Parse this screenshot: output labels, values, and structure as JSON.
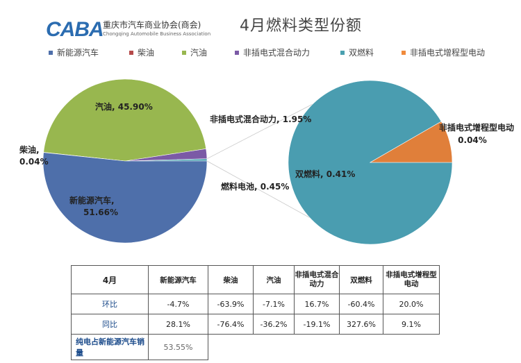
{
  "header": {
    "logo_mark": "CABA",
    "logo_cn": "重庆市汽车商业协会(商会)",
    "logo_en": "Chongqing Automobile Business Association",
    "title": "4月燃料类型份额"
  },
  "chart_data": {
    "type": "pie",
    "title": "4月燃料类型份额",
    "legend_position": "top",
    "series": [
      {
        "name": "新能源汽车",
        "color": "#4e6faa"
      },
      {
        "name": "柴油",
        "color": "#b54a4a"
      },
      {
        "name": "汽油",
        "color": "#98b74f"
      },
      {
        "name": "非插电式混合动力",
        "color": "#7b5aa6"
      },
      {
        "name": "双燃料",
        "color": "#4aa0b0"
      },
      {
        "name": "非插电式增程型电动",
        "color": "#f08a3c"
      }
    ],
    "main_pie": {
      "slices": [
        {
          "label": "新能源汽车",
          "value": 51.66,
          "display": "51.66%",
          "color": "#4e6faa"
        },
        {
          "label": "柴油",
          "value": 0.04,
          "display": "0.04%",
          "color": "#b54a4a"
        },
        {
          "label": "汽油",
          "value": 45.9,
          "display": "45.90%",
          "color": "#98b74f"
        },
        {
          "label": "非插电式混合动力",
          "value": 1.95,
          "display": "1.95%",
          "color": "#7b5aa6"
        },
        {
          "label": "燃料电池",
          "value": 0.45,
          "display": "0.45%",
          "color": "#4aa0b0"
        }
      ]
    },
    "sub_pie": {
      "slices": [
        {
          "label": "双燃料",
          "value": 0.41,
          "display": "0.41%",
          "color": "#4a9db0"
        },
        {
          "label": "非插电式增程型电动",
          "value": 0.04,
          "display": "0.04%",
          "color": "#e07f3a"
        }
      ]
    }
  },
  "labels": {
    "nev": [
      "新能源汽车,",
      "51.66%"
    ],
    "diesel": [
      "柴油,",
      "0.04%"
    ],
    "gasoline": "汽油, 45.90%",
    "hybrid": "非插电式混合动力, 1.95%",
    "fuelcell": "燃料电池, 0.45%",
    "dualfuel": "双燃料, 0.41%",
    "erev": [
      "非插电式增程型电动",
      "0.04%"
    ]
  },
  "table": {
    "headers": [
      "4月",
      "新能源汽车",
      "柴油",
      "汽油",
      "非插电式混合动力",
      "双燃料",
      "非插电式增程型电动"
    ],
    "rows": [
      {
        "label": "环比",
        "values": [
          "-4.7%",
          "-63.9%",
          "-7.1%",
          "16.7%",
          "-60.4%",
          "20.0%"
        ]
      },
      {
        "label": "同比",
        "values": [
          "28.1%",
          "-76.4%",
          "-36.2%",
          "-19.1%",
          "327.6%",
          "9.1%"
        ]
      }
    ],
    "footer_label": "纯电占新能源汽车销量",
    "footer_value": "53.55%"
  }
}
